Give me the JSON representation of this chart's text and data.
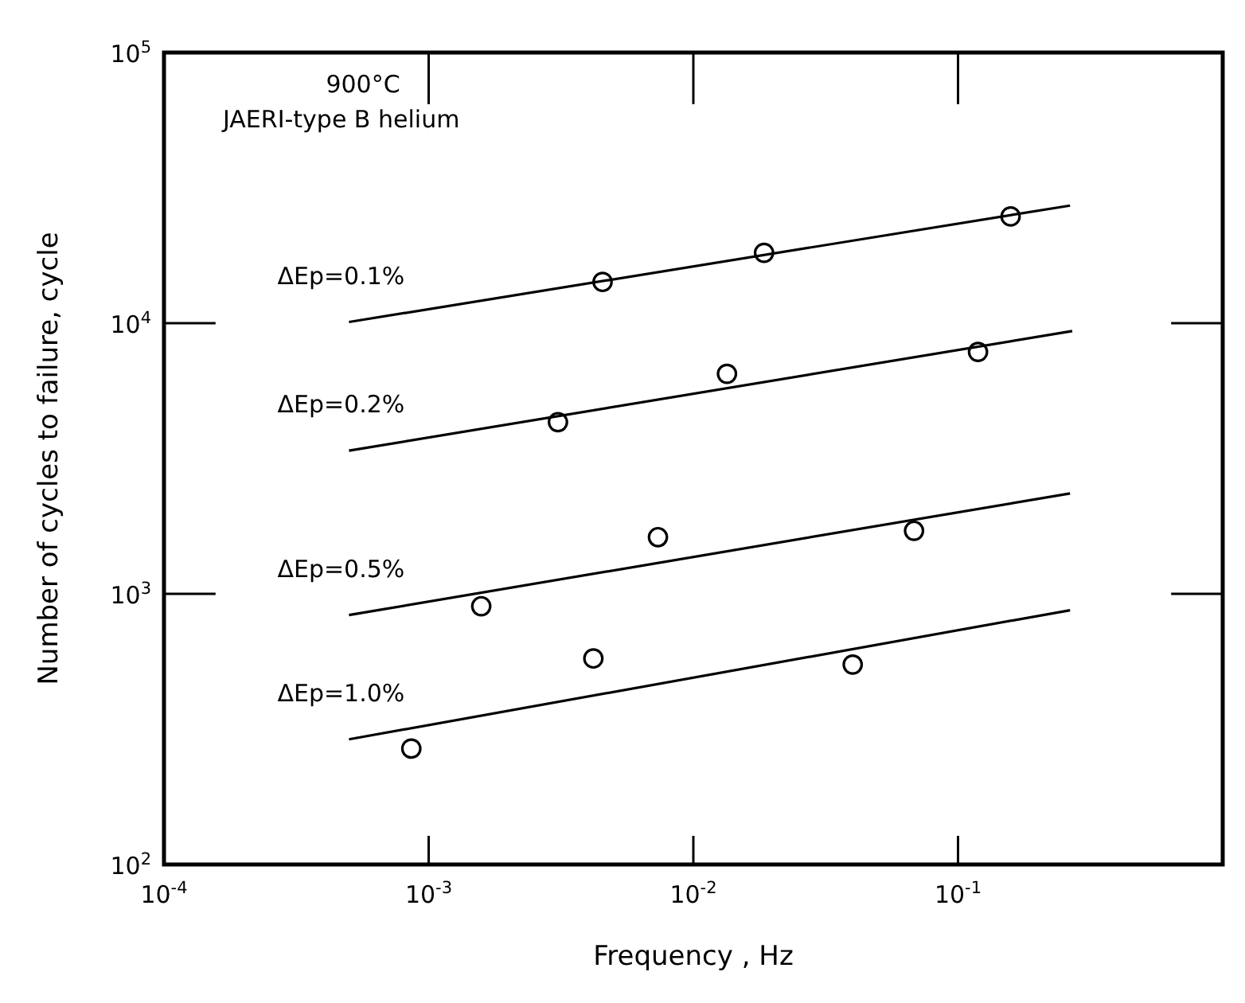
{
  "chart_data": {
    "type": "scatter",
    "xlabel": "Frequency , Hz",
    "ylabel": "Number of cycles to failure, cycle",
    "annotations": [
      "900°C",
      "JAERI-type B helium"
    ],
    "log": "xy",
    "grid": false,
    "legend": false,
    "marker": "circle",
    "xlim": [
      0.0001,
      1
    ],
    "ylim": [
      100,
      100000
    ],
    "xticks": [
      {
        "value": 0.0001,
        "label": "10$^{-4}$"
      },
      {
        "value": 0.001,
        "label": "10$^{-3}$"
      },
      {
        "value": 0.01,
        "label": "10$^{-2}$"
      },
      {
        "value": 0.1,
        "label": "10$^{-1}$"
      }
    ],
    "yticks": [
      {
        "value": 100,
        "label": "10$^{2}$"
      },
      {
        "value": 1000,
        "label": "10$^{3}$"
      },
      {
        "value": 10000,
        "label": "10$^{4}$"
      },
      {
        "value": 100000,
        "label": "10$^{5}$"
      }
    ],
    "series": [
      {
        "color": "#000000",
        "x": [
          0.00454,
          0.0185,
          0.158
        ],
        "values": [
          14200,
          18200,
          24800
        ]
      },
      {
        "type": "line",
        "name": "ΔEp=0.1%",
        "color": "#000000",
        "line_style": "solid",
        "marker": "none",
        "x": [
          0.0005,
          0.265
        ],
        "values": [
          10100,
          27200
        ]
      },
      {
        "color": "#000000",
        "x": [
          0.00308,
          0.0134,
          0.119
        ],
        "values": [
          4310,
          6500,
          7830
        ]
      },
      {
        "type": "line",
        "name": "ΔEp=0.2%",
        "color": "#000000",
        "line_style": "solid",
        "marker": "none",
        "x": [
          0.0005,
          0.27
        ],
        "values": [
          3380,
          9350
        ]
      },
      {
        "color": "#000000",
        "x": [
          0.00158,
          0.00735,
          0.0682
        ],
        "values": [
          900,
          1620,
          1710
        ]
      },
      {
        "type": "line",
        "name": "ΔEp=0.5%",
        "color": "#000000",
        "line_style": "solid",
        "marker": "none",
        "x": [
          0.0005,
          0.265
        ],
        "values": [
          835,
          2350
        ]
      },
      {
        "color": "#000000",
        "x": [
          0.00086,
          0.00419,
          0.04
        ],
        "values": [
          268,
          577,
          548
        ]
      },
      {
        "type": "line",
        "name": "ΔEp=1.0%",
        "color": "#000000",
        "line_style": "solid",
        "marker": "none",
        "x": [
          0.0005,
          0.265
        ],
        "values": [
          290,
          870
        ]
      }
    ]
  }
}
